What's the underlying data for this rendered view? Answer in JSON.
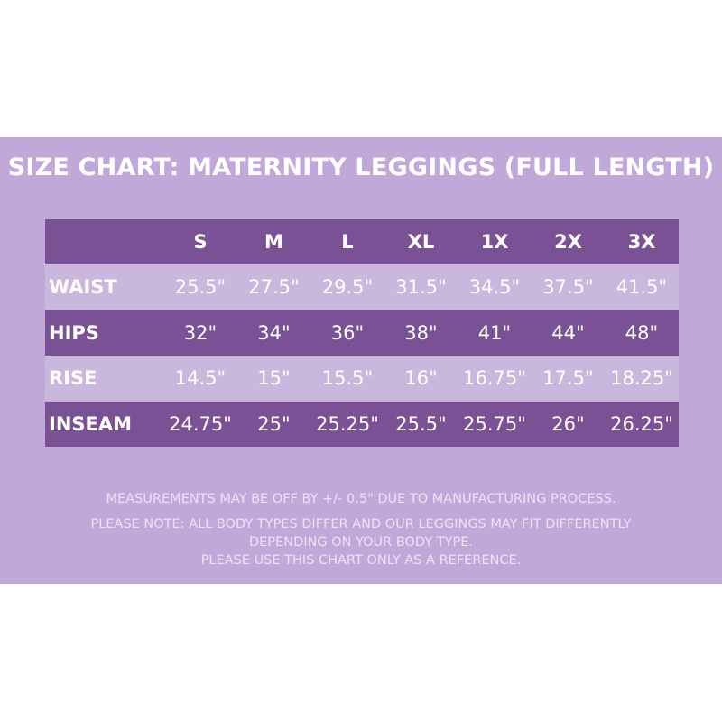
{
  "header": {
    "title": "SIZE CHART: MATERNITY LEGGINGS (FULL LENGTH)"
  },
  "table": {
    "columns": [
      "S",
      "M",
      "L",
      "XL",
      "1X",
      "2X",
      "3X"
    ],
    "rows": [
      {
        "label": "WAIST",
        "values": [
          "25.5\"",
          "27.5\"",
          "29.5\"",
          "31.5\"",
          "34.5\"",
          "37.5\"",
          "41.5\""
        ]
      },
      {
        "label": "HIPS",
        "values": [
          "32\"",
          "34\"",
          "36\"",
          "38\"",
          "41\"",
          "44\"",
          "48\""
        ]
      },
      {
        "label": "RISE",
        "values": [
          "14.5\"",
          "15\"",
          "15.5\"",
          "16\"",
          "16.75\"",
          "17.5\"",
          "18.25\""
        ]
      },
      {
        "label": "INSEAM",
        "values": [
          "24.75\"",
          "25\"",
          "25.25\"",
          "25.5\"",
          "25.75\"",
          "26\"",
          "26.25\""
        ]
      }
    ]
  },
  "notes": [
    "MEASUREMENTS MAY BE OFF BY +/- 0.5\" DUE TO MANUFACTURING PROCESS.",
    "PLEASE NOTE: ALL BODY TYPES DIFFER AND OUR LEGGINGS MAY FIT DIFFERENTLY",
    "DEPENDING ON YOUR BODY TYPE.",
    "PLEASE USE THIS CHART ONLY AS A REFERENCE."
  ]
}
